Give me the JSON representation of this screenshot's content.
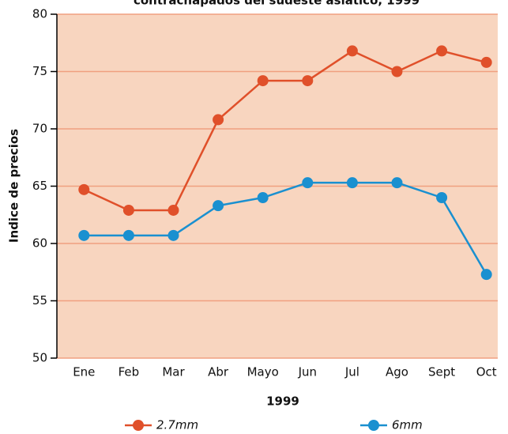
{
  "chart_data": {
    "type": "line",
    "title": "contrachapados del sudeste asiático, 1999",
    "x_label": "1999",
    "y_label": "Indice de precios",
    "categories": [
      "Ene",
      "Feb",
      "Mar",
      "Abr",
      "Mayo",
      "Jun",
      "Jul",
      "Ago",
      "Sept",
      "Oct"
    ],
    "series": [
      {
        "name": "2.7mm",
        "color": "#e0502a",
        "values": [
          64.7,
          62.9,
          62.9,
          70.8,
          74.2,
          74.2,
          76.8,
          75,
          76.8,
          75.8
        ]
      },
      {
        "name": "6mm",
        "color": "#1a90d0",
        "values": [
          60.7,
          60.7,
          60.7,
          63.3,
          64,
          65.3,
          65.3,
          65.3,
          64,
          57.3
        ]
      }
    ],
    "ylim": [
      50,
      80
    ],
    "yticks": [
      50,
      55,
      60,
      65,
      70,
      75,
      80
    ],
    "grid": true,
    "legend": "bottom"
  }
}
